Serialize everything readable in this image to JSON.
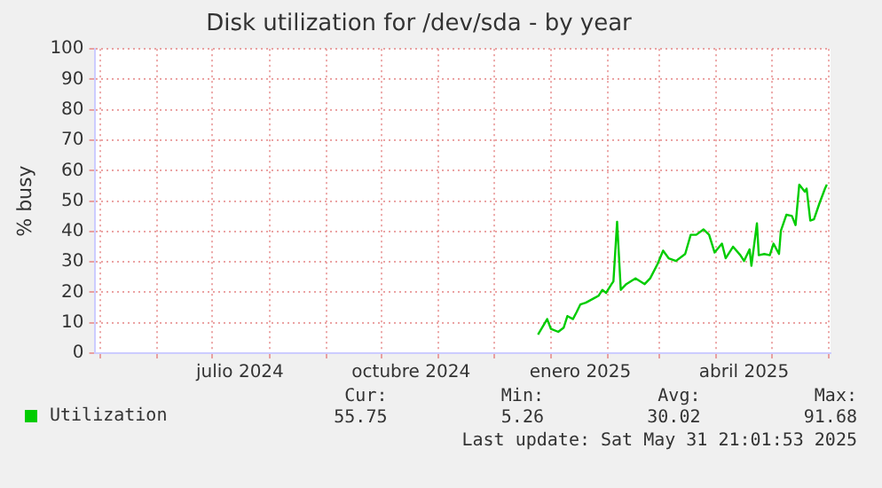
{
  "chart_data": {
    "type": "line",
    "title": "Disk utilization for /dev/sda - by year",
    "ylabel": "% busy",
    "x": [
      "2024-12-25",
      "2024-12-30",
      "2025-01-01",
      "2025-01-05",
      "2025-01-08",
      "2025-01-10",
      "2025-01-13",
      "2025-01-15",
      "2025-01-17",
      "2025-01-20",
      "2025-01-24",
      "2025-01-27",
      "2025-01-29",
      "2025-01-31",
      "2025-02-03",
      "2025-02-04",
      "2025-02-06",
      "2025-02-08",
      "2025-02-11",
      "2025-02-16",
      "2025-02-21",
      "2025-02-24",
      "2025-02-28",
      "2025-03-03",
      "2025-03-06",
      "2025-03-10",
      "2025-03-15",
      "2025-03-18",
      "2025-03-21",
      "2025-03-25",
      "2025-03-28",
      "2025-03-31",
      "2025-04-04",
      "2025-04-06",
      "2025-04-10",
      "2025-04-14",
      "2025-04-16",
      "2025-04-19",
      "2025-04-20",
      "2025-04-23",
      "2025-04-24",
      "2025-04-27",
      "2025-04-30",
      "2025-05-02",
      "2025-05-05",
      "2025-05-06",
      "2025-05-09",
      "2025-05-12",
      "2025-05-14",
      "2025-05-16",
      "2025-05-19",
      "2025-05-20",
      "2025-05-22",
      "2025-05-24",
      "2025-05-27",
      "2025-05-30",
      "2025-05-31"
    ],
    "series": [
      {
        "name": "Utilization",
        "color": "#00cc00",
        "values": [
          6.1,
          11.2,
          8,
          7,
          8.4,
          12.2,
          11.2,
          13.5,
          16,
          16.6,
          17.9,
          18.9,
          20.8,
          19.8,
          22.7,
          23.6,
          43.2,
          20.8,
          22.7,
          24.6,
          22.7,
          24.6,
          29.3,
          33.7,
          31.2,
          30.3,
          32.6,
          38.9,
          38.9,
          40.7,
          38.9,
          33.1,
          36,
          31.2,
          35,
          32.2,
          30.3,
          34.1,
          28.7,
          42.7,
          32.2,
          32.6,
          32.2,
          36,
          32.6,
          40.2,
          45.5,
          45.1,
          42.1,
          55.4,
          53.1,
          54.1,
          43.6,
          44,
          49.3,
          54.1,
          55.4
        ]
      }
    ],
    "xlim": [
      "2024-04-28",
      "2025-06-02"
    ],
    "xticks": [
      {
        "value": "2024-05-01",
        "label": null
      },
      {
        "value": "2024-06-01",
        "label": null
      },
      {
        "value": "2024-07-01",
        "label": null
      },
      {
        "value": "2024-07-16",
        "label": "julio 2024"
      },
      {
        "value": "2024-08-01",
        "label": null
      },
      {
        "value": "2024-09-01",
        "label": null
      },
      {
        "value": "2024-10-01",
        "label": null
      },
      {
        "value": "2024-10-17",
        "label": "octubre 2024"
      },
      {
        "value": "2024-11-01",
        "label": null
      },
      {
        "value": "2024-12-01",
        "label": null
      },
      {
        "value": "2025-01-01",
        "label": null
      },
      {
        "value": "2025-01-17",
        "label": "enero 2025"
      },
      {
        "value": "2025-02-01",
        "label": null
      },
      {
        "value": "2025-03-01",
        "label": null
      },
      {
        "value": "2025-04-01",
        "label": null
      },
      {
        "value": "2025-04-16",
        "label": "abril 2025"
      },
      {
        "value": "2025-05-01",
        "label": null
      },
      {
        "value": "2025-06-01",
        "label": null
      }
    ],
    "ylim": [
      0,
      100
    ],
    "yticks": [
      0,
      10,
      20,
      30,
      40,
      50,
      60,
      70,
      80,
      90,
      100
    ],
    "grid": true,
    "legend": "bottom left",
    "marker": "none",
    "line_style": "solid",
    "annotations": [
      "Cur:",
      "Min:",
      "Avg:",
      "Max:",
      "55.75",
      "5.26",
      "30.02",
      "91.68",
      "Last update: Sat May 31 21:01:53 2025"
    ]
  }
}
